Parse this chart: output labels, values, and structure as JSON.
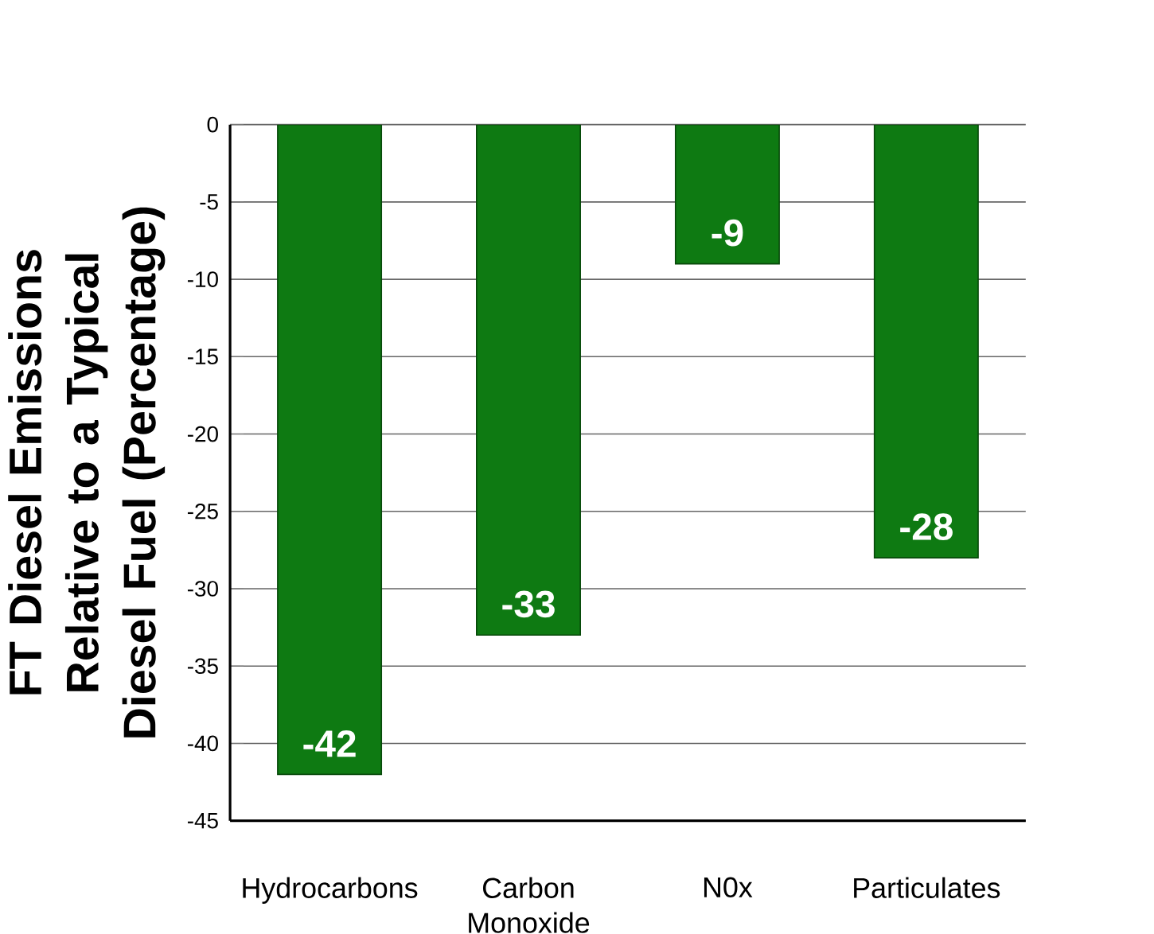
{
  "chart_data": {
    "type": "bar",
    "categories": [
      "Hydrocarbons",
      "Carbon Monoxide",
      "N0x",
      "Particulates"
    ],
    "values": [
      -42,
      -33,
      -9,
      -28
    ],
    "color": "#0e7a12",
    "ylabel": "FT Diesel Emissions Relative to a Typical Diesel Fuel (Percentage)",
    "ylim": [
      -45,
      0
    ],
    "yticks": [
      0,
      -5,
      -10,
      -15,
      -20,
      -25,
      -30,
      -35,
      -40,
      -45
    ],
    "grid": "y",
    "data_labels": true
  }
}
